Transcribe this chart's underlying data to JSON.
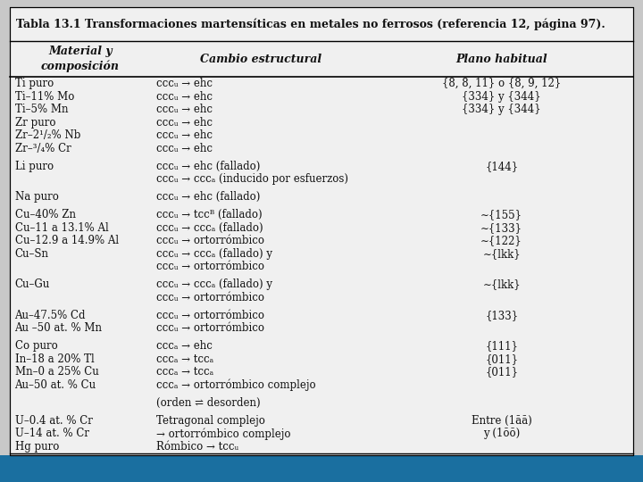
{
  "title": "Tabla 13.1 Transformaciones martensíticas en metales no ferrosos (referencia 12, página 97).",
  "col_headers": [
    "Material y\ncomposición",
    "Cambio estructural",
    "Plano habitual"
  ],
  "rows": [
    [
      "Ti puro",
      "cccᵤ → ehc",
      "{8, 8, 11} o {8, 9, 12}"
    ],
    [
      "Ti–11% Mo",
      "cccᵤ → ehc",
      "{334} y {344}"
    ],
    [
      "Ti–5% Mn",
      "cccᵤ → ehc",
      "{334} y {344}"
    ],
    [
      "Zr puro",
      "cccᵤ → ehc",
      ""
    ],
    [
      "Zr–2¹/₂% Nb",
      "cccᵤ → ehc",
      ""
    ],
    [
      "Zr–³/₄% Cr",
      "cccᵤ → ehc",
      ""
    ],
    [
      "Li puro",
      "cccᵤ → ehc (fallado)",
      "{144}"
    ],
    [
      "",
      "cccᵤ → cccₐ (inducido por esfuerzos)",
      ""
    ],
    [
      "Na puro",
      "cccᵤ → ehc (fallado)",
      ""
    ],
    [
      "Cu–40% Zn",
      "cccᵤ → tccᴮ (fallado)",
      "∼{155}"
    ],
    [
      "Cu–11 a 13.1% Al",
      "cccᵤ → cccₐ (fallado)",
      "∼{133}"
    ],
    [
      "Cu–12.9 a 14.9% Al",
      "cccᵤ → ortorrómbico",
      "∼{122}"
    ],
    [
      "Cu–Sn",
      "cccᵤ → cccₐ (fallado) y",
      "∼{lkk}"
    ],
    [
      "",
      "cccᵤ → ortorrómbico",
      ""
    ],
    [
      "Cu–Gu",
      "cccᵤ → cccₐ (fallado) y",
      "∼{lkk}"
    ],
    [
      "",
      "cccᵤ → ortorrómbico",
      ""
    ],
    [
      "Au–47.5% Cd",
      "cccᵤ → ortorrómbico",
      "{133}"
    ],
    [
      "Au –50 at. % Mn",
      "cccᵤ → ortorrómbico",
      ""
    ],
    [
      "Co puro",
      "cccₐ → ehc",
      "{111}"
    ],
    [
      "In–18 a 20% Tl",
      "cccₐ → tccₐ",
      "{011}"
    ],
    [
      "Mn–0 a 25% Cu",
      "cccₐ → tccₐ",
      "{011}"
    ],
    [
      "Au–50 at. % Cu",
      "cccₐ → ortorrómbico complejo",
      ""
    ],
    [
      "",
      "(orden ⇌ desorden)",
      ""
    ],
    [
      "U–0.4 at. % Cr",
      "Tetragonal complejo",
      "Entre (1āā)"
    ],
    [
      "U–14 at. % Cr",
      "→ ortorrómbico complejo",
      "y (1ōō)"
    ],
    [
      "Hg puro",
      "Rómbico → tccᵤ",
      ""
    ]
  ],
  "group_gaps_after": [
    5,
    7,
    8,
    13,
    15,
    17,
    21,
    22
  ],
  "bg_color": "#c8c8c8",
  "table_bg": "#f0f0f0",
  "text_color": "#111111",
  "title_font_size": 9,
  "header_font_size": 9,
  "row_font_size": 8.5,
  "blue_bar_color": "#1a6fa0",
  "blue_bar_height": 0.055
}
